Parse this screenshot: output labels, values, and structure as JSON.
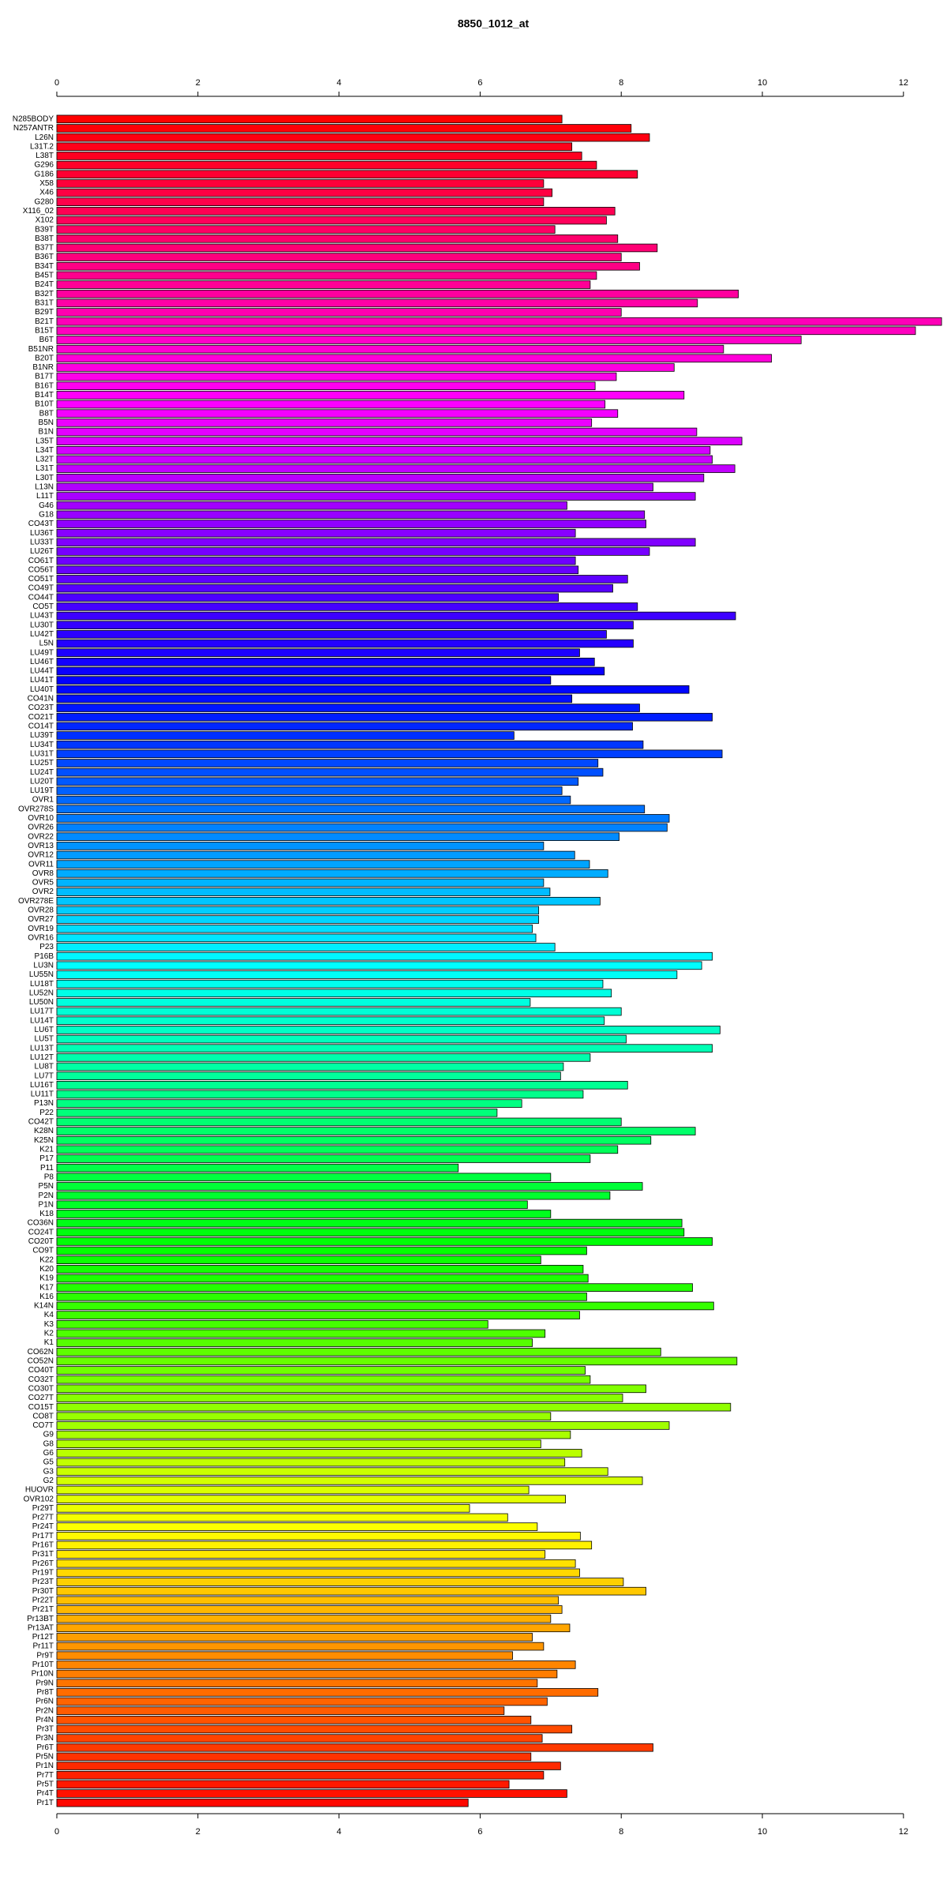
{
  "chart_data": {
    "type": "barh",
    "title": "8850_1012_at",
    "categories": [
      "N285BODY",
      "N257ANTR",
      "L26N",
      "L31T.2",
      "L38T",
      "G296",
      "G186",
      "X58",
      "X46",
      "G280",
      "X116_02",
      "X102",
      "B39T",
      "B38T",
      "B37T",
      "B36T",
      "B34T",
      "B45T",
      "B24T",
      "B32T",
      "B31T",
      "B29T",
      "B21T",
      "B15T",
      "B6T",
      "B51NR",
      "B20T",
      "B1NR",
      "B17T",
      "B16T",
      "B14T",
      "B10T",
      "B8T",
      "B5N",
      "B1N",
      "L35T",
      "L34T",
      "L32T",
      "L31T",
      "L30T",
      "L13N",
      "L11T",
      "G46",
      "G18",
      "CO43T",
      "LU36T",
      "LU33T",
      "LU26T",
      "CO61T",
      "CO56T",
      "CO51T",
      "CO49T",
      "CO44T",
      "CO5T",
      "LU43T",
      "LU30T",
      "LU42T",
      "L5N",
      "LU49T",
      "LU46T",
      "LU44T",
      "LU41T",
      "LU40T",
      "CO41N",
      "CO23T",
      "CO21T",
      "CO14T",
      "LU39T",
      "LU34T",
      "LU31T",
      "LU25T",
      "LU24T",
      "LU20T",
      "LU19T",
      "OVR1",
      "OVR278S",
      "OVR10",
      "OVR26",
      "OVR22",
      "OVR13",
      "OVR12",
      "OVR11",
      "OVR8",
      "OVR5",
      "OVR2",
      "OVR278E",
      "OVR28",
      "OVR27",
      "OVR19",
      "OVR16",
      "P23",
      "P16B",
      "LU3N",
      "LU55N",
      "LU18T",
      "LU52N",
      "LU50N",
      "LU17T",
      "LU14T",
      "LU6T",
      "LU5T",
      "LU13T",
      "LU12T",
      "LU8T",
      "LU7T",
      "LU16T",
      "LU11T",
      "P13N",
      "P22",
      "CO42T",
      "K28N",
      "K25N",
      "K21",
      "P17",
      "P11",
      "P8",
      "P5N",
      "P2N",
      "P1N",
      "K18",
      "CO36N",
      "CO24T",
      "CO20T",
      "CO9T",
      "K22",
      "K20",
      "K19",
      "K17",
      "K16",
      "K14N",
      "K4",
      "K3",
      "K2",
      "K1",
      "CO62N",
      "CO52N",
      "CO40T",
      "CO32T",
      "CO30T",
      "CO27T",
      "CO15T",
      "CO8T",
      "CO7T",
      "G9",
      "G8",
      "G6",
      "G5",
      "G3",
      "G2",
      "HUOVR",
      "OVR102",
      "Pr29T",
      "Pr27T",
      "Pr24T",
      "Pr17T",
      "Pr16T",
      "Pr31T",
      "Pr26T",
      "Pr19T",
      "Pr23T",
      "Pr30T",
      "Pr22T",
      "Pr21T",
      "Pr13BT",
      "Pr13AT",
      "Pr12T",
      "Pr11T",
      "Pr9T",
      "Pr10T",
      "Pr10N",
      "Pr9N",
      "Pr8T",
      "Pr6N",
      "Pr2N",
      "Pr4N",
      "Pr3T",
      "Pr3N",
      "Pr6T",
      "Pr5N",
      "Pr1N",
      "Pr7T",
      "Pr5T",
      "Pr4T",
      "Pr1T"
    ],
    "values": [
      7.16,
      8.14,
      8.4,
      7.3,
      7.44,
      7.65,
      8.23,
      6.9,
      7.02,
      6.9,
      7.91,
      7.79,
      7.06,
      7.95,
      8.51,
      8.0,
      8.26,
      7.65,
      7.56,
      9.66,
      9.08,
      8.0,
      12.54,
      12.17,
      10.55,
      9.45,
      10.13,
      8.75,
      7.93,
      7.63,
      8.89,
      7.77,
      7.95,
      7.58,
      9.07,
      9.71,
      9.26,
      9.29,
      9.61,
      9.17,
      8.45,
      9.05,
      7.23,
      8.33,
      8.35,
      7.35,
      9.05,
      8.4,
      7.35,
      7.39,
      8.09,
      7.88,
      7.11,
      8.23,
      9.62,
      8.17,
      7.79,
      8.17,
      7.41,
      7.62,
      7.76,
      7.0,
      8.96,
      7.3,
      8.26,
      9.29,
      8.16,
      6.48,
      8.31,
      9.43,
      7.67,
      7.74,
      7.39,
      7.16,
      7.28,
      8.33,
      8.68,
      8.65,
      7.97,
      6.9,
      7.34,
      7.55,
      7.81,
      6.9,
      6.99,
      7.7,
      6.83,
      6.83,
      6.74,
      6.79,
      7.06,
      9.29,
      9.14,
      8.79,
      7.74,
      7.86,
      6.71,
      8.0,
      7.76,
      9.4,
      8.07,
      9.29,
      7.56,
      7.18,
      7.14,
      8.09,
      7.46,
      6.59,
      6.24,
      8.0,
      9.05,
      8.42,
      7.95,
      7.56,
      5.69,
      7.0,
      8.3,
      7.84,
      6.67,
      7.0,
      8.86,
      8.89,
      9.29,
      7.51,
      6.86,
      7.46,
      7.53,
      9.01,
      7.51,
      9.31,
      7.41,
      6.11,
      6.92,
      6.74,
      8.56,
      9.64,
      7.49,
      7.56,
      8.35,
      8.02,
      9.55,
      7.0,
      8.68,
      7.28,
      6.86,
      7.44,
      7.2,
      7.81,
      8.3,
      6.69,
      7.21,
      5.85,
      6.39,
      6.81,
      7.42,
      7.58,
      6.92,
      7.35,
      7.41,
      8.03,
      8.35,
      7.11,
      7.16,
      7.0,
      7.27,
      6.74,
      6.9,
      6.46,
      7.35,
      7.09,
      6.81,
      7.67,
      6.95,
      6.34,
      6.72,
      7.3,
      6.88,
      8.45,
      6.72,
      7.14,
      6.9,
      6.41,
      7.23,
      5.83
    ],
    "palette": "rainbow",
    "xlim": [
      0,
      12.55
    ],
    "xticks": [
      0,
      2,
      4,
      6,
      8,
      10,
      12
    ]
  }
}
